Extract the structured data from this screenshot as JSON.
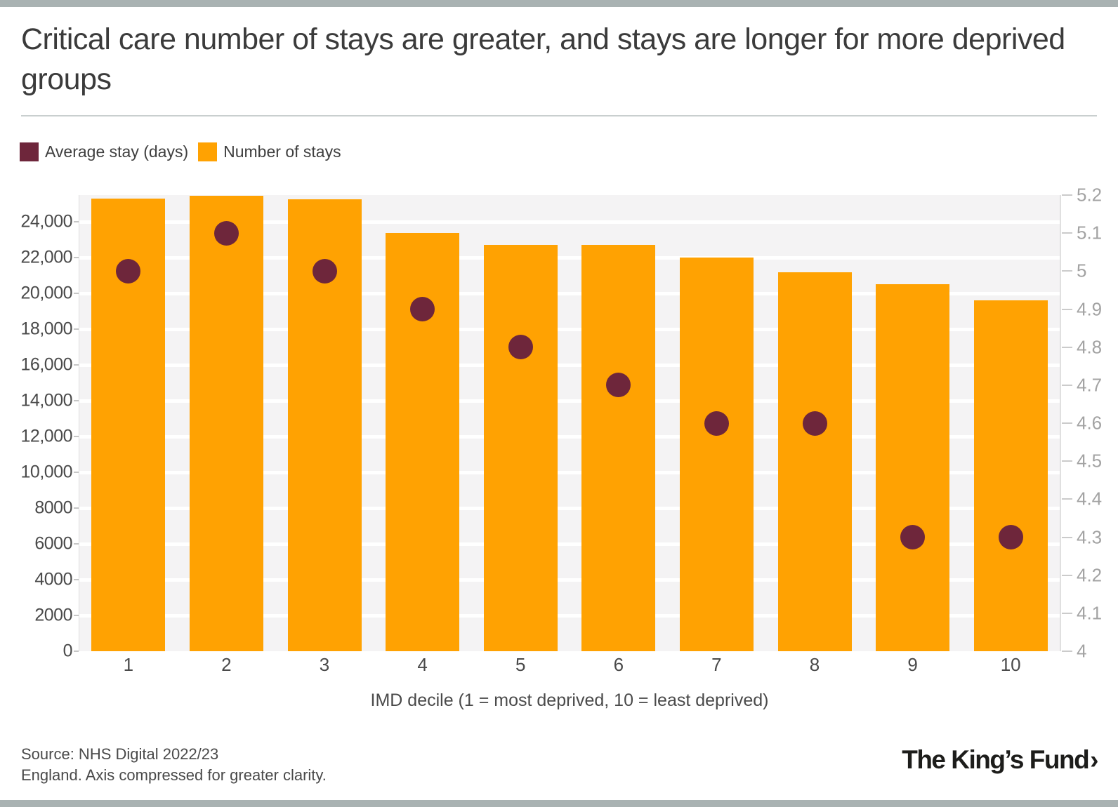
{
  "header": {
    "title": "Critical care number of stays are greater, and stays are longer for more deprived groups"
  },
  "legend": [
    {
      "label": "Average stay (days)",
      "color": "#6E263B"
    },
    {
      "label": "Number of stays",
      "color": "#FFA202"
    }
  ],
  "colors": {
    "bar": "#FFA202",
    "dot": "#6E263B",
    "plot_background": "#F4F3F4",
    "grid": "#FFFFFF",
    "page_border": "#A9B2B2",
    "title_text": "#3B3B3B",
    "axis_text": "#4A4A4A",
    "right_axis_text": "#A3A3A3"
  },
  "chart_data": {
    "type": "bar",
    "subtype": "dual-axis column chart with dot overlay",
    "title": "Critical care number of stays are greater, and stays are longer for more deprived groups",
    "categories": [
      "1",
      "2",
      "3",
      "4",
      "5",
      "6",
      "7",
      "8",
      "9",
      "10"
    ],
    "series": [
      {
        "name": "Number of stays",
        "type": "bar",
        "axis": "left",
        "color": "#FFA202",
        "values": [
          25300,
          25450,
          25250,
          23400,
          22700,
          22700,
          22000,
          21200,
          20500,
          19600
        ]
      },
      {
        "name": "Average stay (days)",
        "type": "scatter",
        "axis": "right",
        "color": "#6E263B",
        "values": [
          5.0,
          5.1,
          5.0,
          4.9,
          4.8,
          4.7,
          4.6,
          4.6,
          4.3,
          4.3
        ]
      }
    ],
    "xlabel": "IMD decile (1 = most deprived, 10 = least deprived)",
    "left_axis": {
      "min": 0,
      "max": 25500,
      "tick_values": [
        0,
        2000,
        4000,
        6000,
        8000,
        10000,
        12000,
        14000,
        16000,
        18000,
        20000,
        22000,
        24000
      ],
      "tick_labels": [
        "0",
        "2000",
        "4000",
        "6000",
        "8000",
        "10,000",
        "12,000",
        "14,000",
        "16,000",
        "18,000",
        "20,000",
        "22,000",
        "24,000"
      ]
    },
    "right_axis": {
      "min": 4,
      "max": 5.2,
      "tick_values": [
        4,
        4.1,
        4.2,
        4.3,
        4.4,
        4.5,
        4.6,
        4.7,
        4.8,
        4.9,
        5,
        5.1,
        5.2
      ],
      "tick_labels": [
        "4",
        "4.1",
        "4.2",
        "4.3",
        "4.4",
        "4.5",
        "4.6",
        "4.7",
        "4.8",
        "4.9",
        "5",
        "5.1",
        "5.2"
      ]
    },
    "grid": {
      "horizontal": true,
      "vertical": false
    },
    "legend_position": "top-left"
  },
  "footer": {
    "source_line1": "Source: NHS Digital 2022/23",
    "source_line2": "England. Axis compressed for greater clarity.",
    "logo_text": "The King’s Fund",
    "logo_chevron": "›"
  }
}
